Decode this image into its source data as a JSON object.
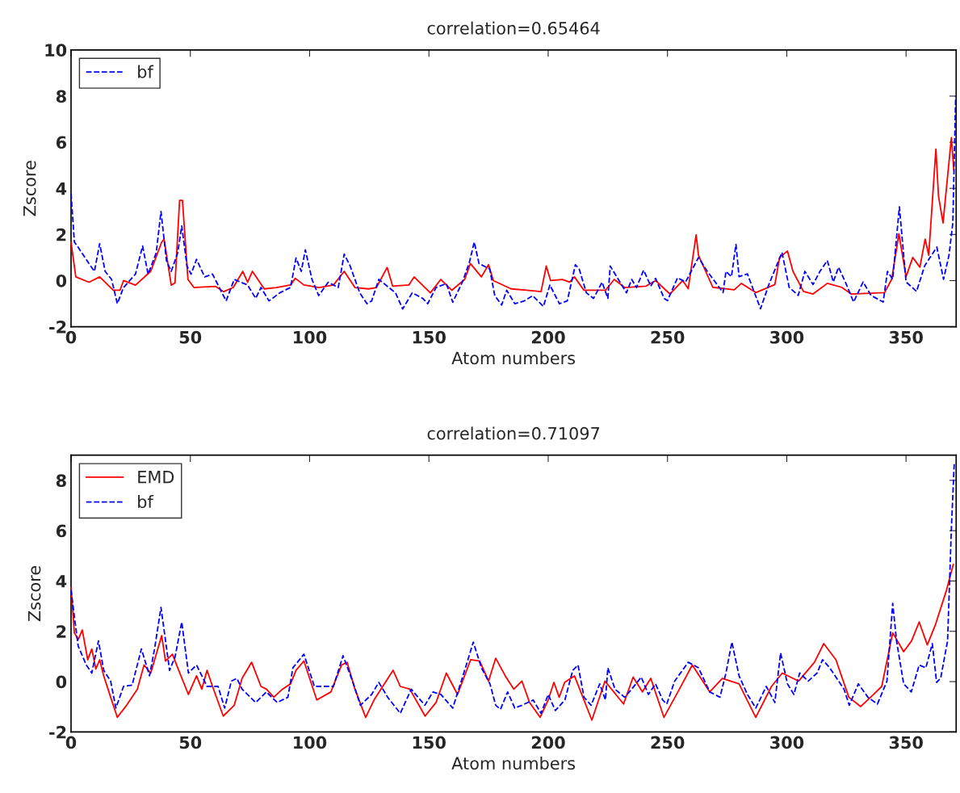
{
  "chart_data": [
    {
      "type": "line",
      "title": "correlation=0.65464",
      "xlabel": "Atom numbers",
      "ylabel": "Zscore",
      "xlim": [
        0,
        371
      ],
      "ylim": [
        -2,
        10
      ],
      "xticks": [
        0,
        50,
        100,
        150,
        200,
        250,
        300,
        350
      ],
      "yticks": [
        -2,
        0,
        2,
        4,
        6,
        8,
        10
      ],
      "legend": "top left",
      "grid": false,
      "series": [
        {
          "color": "#ff0000",
          "line_style": "solid",
          "x": [
            0,
            2,
            7.5,
            12,
            17.7,
            20.5,
            22,
            27,
            33.4,
            38,
            39,
            42,
            43.6,
            45.5,
            46.7,
            49,
            51.5,
            60.5,
            64,
            68,
            72,
            74,
            76,
            81,
            86,
            92,
            94,
            97.6,
            104,
            110,
            114.5,
            119,
            124.7,
            128,
            132.5,
            134.8,
            141.6,
            143.8,
            150.6,
            155,
            159.6,
            165,
            167.4,
            172,
            175,
            177,
            184.5,
            191,
            197,
            199.2,
            201,
            206,
            209,
            211,
            215,
            224,
            227.7,
            232,
            241,
            245,
            251,
            256.4,
            258.7,
            262,
            263,
            269,
            278,
            281,
            287,
            295,
            297,
            300.3,
            302.6,
            307,
            311,
            317,
            323,
            327,
            341,
            344,
            347,
            350,
            352.8,
            355.8,
            358,
            359.5,
            362.5,
            363.6,
            365.5,
            369,
            370
          ],
          "values": [
            1.67,
            0.16,
            -0.07,
            0.16,
            -0.42,
            -0.42,
            0,
            -0.2,
            0.4,
            1.67,
            1.8,
            -0.2,
            -0.1,
            3.48,
            3.48,
            0.05,
            -0.3,
            -0.25,
            -0.48,
            -0.3,
            0.4,
            -0.07,
            0.4,
            -0.36,
            -0.3,
            -0.19,
            0.1,
            -0.19,
            -0.3,
            -0.19,
            0.4,
            -0.3,
            -0.36,
            -0.3,
            0.57,
            -0.24,
            -0.19,
            0.16,
            -0.53,
            0.05,
            -0.42,
            0.05,
            0.74,
            0.16,
            0.69,
            0,
            -0.36,
            -0.42,
            -0.48,
            0.63,
            0,
            0.05,
            -0.07,
            0.16,
            -0.42,
            -0.42,
            0.05,
            -0.3,
            -0.24,
            0,
            -0.58,
            0,
            -0.35,
            1.98,
            1.1,
            -0.29,
            -0.4,
            -0.12,
            -0.52,
            -0.17,
            1.0,
            1.28,
            0.4,
            -0.47,
            -0.58,
            -0.12,
            -0.29,
            -0.58,
            -0.52,
            0.06,
            2.03,
            0.17,
            1.0,
            0.58,
            1.8,
            1.1,
            5.7,
            3.66,
            2.5,
            6.2,
            4.8
          ]
        },
        {
          "name": "bf",
          "color": "#0000ff",
          "line_style": "dashed",
          "x": [
            0,
            1.4,
            3,
            7.5,
            9.8,
            12,
            14.3,
            17,
            19.4,
            22,
            27,
            30,
            32.3,
            35.7,
            37.7,
            40,
            42,
            44.7,
            46.4,
            48.6,
            50.3,
            52.6,
            56,
            59.3,
            65,
            68.4,
            74,
            77.4,
            79.6,
            83,
            87.5,
            92,
            94.3,
            96.5,
            98.2,
            101,
            103.8,
            107.8,
            112,
            114.5,
            117,
            121,
            124,
            126,
            129,
            136,
            139,
            143,
            147.4,
            149.5,
            153,
            157.3,
            160,
            164,
            167,
            169,
            171,
            175.5,
            177.6,
            180.5,
            182.6,
            186,
            190,
            193.5,
            198,
            200.7,
            204.7,
            208,
            211.4,
            213,
            216,
            219,
            222.6,
            225,
            226,
            229.4,
            232.8,
            235,
            237,
            240,
            243,
            245,
            248.6,
            250,
            254.2,
            257.6,
            263,
            266.7,
            273.3,
            274.5,
            276.8,
            278.7,
            280,
            283.5,
            289,
            292.5,
            298,
            301,
            304.8,
            307.6,
            311,
            313.9,
            317,
            319.5,
            321.7,
            325,
            328,
            332,
            335.3,
            340.4,
            342.2,
            344.4,
            347.2,
            350,
            354.4,
            357.8,
            362.9,
            365.7,
            368,
            369.6,
            370.8
          ],
          "values": [
            3.77,
            1.67,
            1.44,
            0.74,
            0.4,
            1.6,
            0.4,
            0.05,
            -1.0,
            -0.3,
            0.28,
            1.5,
            0.28,
            1.2,
            3.0,
            0.86,
            0.4,
            1.2,
            2.37,
            0.63,
            0.28,
            0.92,
            0.16,
            0.28,
            -0.88,
            0.05,
            -0.19,
            -0.77,
            -0.3,
            -0.88,
            -0.53,
            -0.3,
            0.98,
            0.4,
            1.33,
            0.05,
            -0.65,
            -0.07,
            -0.3,
            1.15,
            0.63,
            -0.53,
            -1.0,
            -0.88,
            0.05,
            -0.53,
            -1.23,
            -0.53,
            -0.77,
            -1.0,
            -0.3,
            -0.13,
            -0.94,
            -0.07,
            0.8,
            1.67,
            0.74,
            0.5,
            -0.65,
            -1.06,
            -0.42,
            -1.0,
            -0.88,
            -0.65,
            -1.12,
            -0.19,
            -1.0,
            -0.88,
            0.69,
            0.5,
            -0.53,
            -0.77,
            -0.07,
            -0.77,
            0.63,
            0.05,
            -0.53,
            0.05,
            -0.3,
            0.45,
            -0.24,
            0.1,
            -0.77,
            -0.87,
            0.12,
            -0.06,
            1.0,
            0.4,
            -0.52,
            0.4,
            0.17,
            1.57,
            0.17,
            0.29,
            -1.22,
            -0.17,
            1.22,
            -0.29,
            -0.64,
            0.4,
            -0.17,
            0.4,
            0.87,
            -0.06,
            0.58,
            -0.17,
            -0.93,
            -0.06,
            -0.64,
            -0.93,
            0.4,
            0.06,
            3.2,
            -0.06,
            -0.47,
            0.64,
            1.45,
            0.06,
            1.1,
            2.5,
            8.0
          ]
        }
      ]
    },
    {
      "type": "line",
      "title": "correlation=0.71097",
      "xlabel": "Atom numbers",
      "ylabel": "Zscore",
      "xlim": [
        0,
        371
      ],
      "ylim": [
        -2,
        9
      ],
      "xticks": [
        0,
        50,
        100,
        150,
        200,
        250,
        300,
        350
      ],
      "yticks": [
        -2,
        0,
        2,
        4,
        6,
        8
      ],
      "legend": "top left",
      "grid": false,
      "series": [
        {
          "name": "EMD",
          "color": "#ff0000",
          "line_style": "solid",
          "x": [
            0,
            1.4,
            3,
            4.7,
            7,
            8.7,
            10.4,
            12,
            13.7,
            16.6,
            19.4,
            23.3,
            27.8,
            30.6,
            33.4,
            38,
            39.6,
            42.5,
            44.7,
            49.2,
            52.6,
            54.8,
            57,
            59.3,
            63.8,
            68.4,
            71.7,
            75.7,
            79.6,
            81.9,
            85,
            88.6,
            92,
            94.3,
            97.6,
            103,
            108.9,
            113.4,
            115.7,
            119,
            123.5,
            127,
            135,
            138,
            142,
            148.4,
            153,
            157.3,
            162,
            167.5,
            171.3,
            175,
            178,
            182,
            185.6,
            189,
            192.2,
            196.6,
            200,
            202.4,
            204.6,
            206.9,
            211,
            218.3,
            223.8,
            231.6,
            235.6,
            239.5,
            243,
            248.5,
            255,
            260.4,
            267.7,
            273,
            280,
            287,
            293.6,
            298.1,
            305,
            311.6,
            315.5,
            320.6,
            326,
            331,
            336.4,
            339.8,
            344.4,
            349,
            352.3,
            355.5,
            358.9,
            362.3,
            367,
            369.8
          ],
          "values": [
            3.75,
            1.94,
            1.67,
            2.05,
            0.87,
            1.3,
            0.5,
            0.87,
            0.23,
            -0.62,
            -1.42,
            -0.94,
            -0.3,
            0.66,
            0.34,
            1.83,
            0.82,
            1.09,
            0.55,
            -0.51,
            0.23,
            -0.3,
            0.45,
            -0.19,
            -1.37,
            -0.94,
            0.13,
            0.77,
            -0.19,
            -0.3,
            -0.62,
            -0.3,
            -0.09,
            0.45,
            0.82,
            -0.73,
            -0.41,
            0.66,
            0.77,
            -0.3,
            -1.42,
            -0.73,
            0.45,
            -0.19,
            -0.3,
            -1.37,
            -0.83,
            0.34,
            -0.51,
            0.87,
            0.82,
            0.02,
            0.93,
            0.23,
            -0.3,
            0.02,
            -0.83,
            -1.42,
            -0.73,
            -0.03,
            -0.62,
            -0.03,
            0.23,
            -1.53,
            0.02,
            -0.89,
            0.18,
            -0.41,
            0.13,
            -1.42,
            -0.3,
            0.66,
            -0.41,
            0.13,
            -0.09,
            -1.42,
            -0.19,
            0.34,
            0.02,
            0.77,
            1.51,
            0.87,
            -0.62,
            -0.99,
            -0.51,
            -0.19,
            1.94,
            1.19,
            1.62,
            2.37,
            1.46,
            2.26,
            3.65,
            4.66
          ]
        },
        {
          "name": "bf",
          "color": "#0000ff",
          "line_style": "dashed",
          "x": [
            0,
            1.4,
            3,
            6.4,
            8.7,
            11.5,
            13.7,
            16.6,
            18.8,
            22,
            25.6,
            29.5,
            32.9,
            35,
            37.7,
            41.3,
            43.6,
            46.4,
            49.2,
            52.6,
            57,
            61.6,
            64.4,
            67.2,
            69.5,
            71.7,
            77.4,
            81.9,
            86.4,
            90.9,
            93,
            97.6,
            102,
            105.5,
            110,
            114,
            118,
            121.3,
            126,
            129,
            132.7,
            138,
            142.6,
            148.3,
            151.7,
            155,
            160,
            165,
            168.6,
            172,
            175.6,
            178,
            180,
            183,
            186,
            189,
            193.7,
            197,
            200,
            203,
            207,
            210.3,
            212.5,
            215,
            218,
            221.6,
            224,
            225,
            228,
            232,
            235,
            239,
            242,
            245,
            248,
            249.7,
            253,
            258.7,
            263,
            267.7,
            272,
            274.5,
            277,
            280,
            283.5,
            287,
            291.4,
            295,
            297.4,
            300.3,
            303,
            305.4,
            309,
            312.7,
            315,
            318,
            324,
            326.2,
            330,
            334,
            338,
            342,
            344.4,
            346,
            349,
            352.2,
            355.5,
            358.3,
            361,
            362.8,
            364.5,
            367.4,
            369,
            370.2
          ],
          "values": [
            3.65,
            2.58,
            1.41,
            0.66,
            0.34,
            1.62,
            0.45,
            0.02,
            -1.05,
            -0.19,
            -0.14,
            1.3,
            0.23,
            1.3,
            2.95,
            0.45,
            0.98,
            2.37,
            0.34,
            0.66,
            -0.19,
            -0.19,
            -1.05,
            0.02,
            0.13,
            -0.3,
            -0.83,
            -0.41,
            -0.83,
            -0.62,
            0.55,
            1.09,
            -0.19,
            -0.19,
            -0.19,
            1.03,
            0.02,
            -0.94,
            -0.51,
            -0.03,
            -0.62,
            -1.26,
            -0.3,
            -0.94,
            -0.41,
            -0.51,
            -1.05,
            0.45,
            1.57,
            0.55,
            -0.09,
            -0.94,
            -1.1,
            -0.41,
            -1.05,
            -0.94,
            -0.73,
            -1.26,
            -0.51,
            -1.15,
            -0.73,
            0.45,
            0.66,
            -0.62,
            -0.94,
            -0.09,
            -0.73,
            0.55,
            -0.3,
            -0.62,
            -0.3,
            0.18,
            -0.51,
            -0.09,
            -0.73,
            -0.89,
            0.02,
            0.77,
            0.55,
            -0.41,
            -0.62,
            0.34,
            1.57,
            0.23,
            -0.51,
            -1.05,
            -0.19,
            -0.83,
            1.14,
            -0.09,
            -0.51,
            0.34,
            0.02,
            0.34,
            0.87,
            0.55,
            -0.3,
            -0.94,
            -0.09,
            -0.62,
            -0.89,
            0.02,
            3.11,
            1.62,
            -0.09,
            -0.41,
            0.66,
            0.55,
            1.51,
            -0.03,
            0.13,
            1.62,
            6.1,
            8.7
          ]
        }
      ]
    }
  ]
}
